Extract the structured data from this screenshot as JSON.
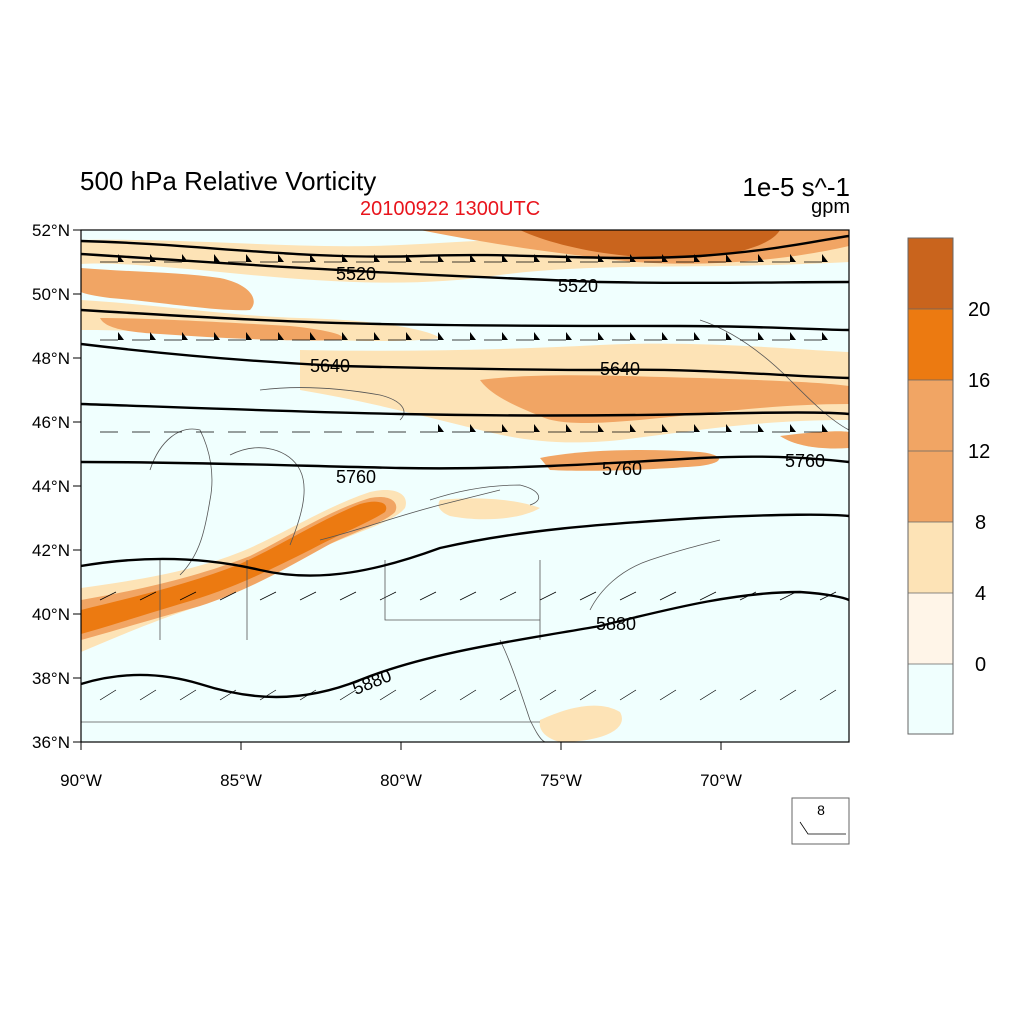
{
  "header": {
    "title": "500 hPa Relative Vorticity",
    "datetime": "20100922 1300UTC",
    "units_primary": "1e-5 s^-1",
    "units_secondary": "gpm"
  },
  "colors": {
    "datetime": "#e8141c",
    "ocean_background": "#f0fffe",
    "bin_0_4": "#fff5e8",
    "bin_4_8": "#fde3b6",
    "bin_8_16": "#f1a564",
    "bin_16_20": "#ec7a11",
    "bin_20_plus": "#c9641d"
  },
  "map": {
    "lon_range": [
      -90,
      -66
    ],
    "lat_range": [
      36,
      52
    ],
    "lon_ticks": [
      "90°W",
      "85°W",
      "80°W",
      "75°W",
      "70°W"
    ],
    "lat_ticks": [
      "52°N",
      "50°N",
      "48°N",
      "46°N",
      "44°N",
      "42°N",
      "40°N",
      "38°N",
      "36°N"
    ]
  },
  "colorbar": {
    "labels": [
      "20",
      "16",
      "12",
      "8",
      "4",
      "0"
    ]
  },
  "contours": {
    "labels": [
      "5520",
      "5520",
      "5640",
      "5640",
      "5760",
      "5760",
      "5760",
      "5880",
      "5880"
    ]
  },
  "reference_vector": {
    "label": "8"
  }
}
